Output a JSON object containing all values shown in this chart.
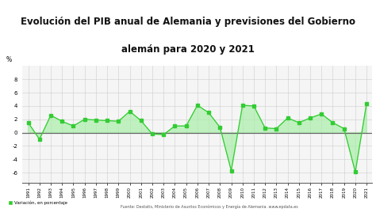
{
  "years": [
    "1991",
    "1992",
    "1993",
    "1994",
    "1995",
    "1996",
    "1997",
    "1998",
    "1999",
    "2000",
    "2001",
    "2002",
    "2003",
    "2004",
    "2005",
    "2006",
    "2007",
    "2008",
    "2009",
    "2010",
    "2011",
    "2012",
    "2013",
    "2014",
    "2015",
    "2016",
    "2017",
    "2018",
    "2019",
    "2020",
    "2021"
  ],
  "values": [
    1.5,
    -1.0,
    2.6,
    1.7,
    1.0,
    2.0,
    1.9,
    1.8,
    1.7,
    3.2,
    1.8,
    -0.2,
    -0.3,
    1.0,
    1.0,
    4.1,
    3.0,
    0.8,
    -5.7,
    4.1,
    4.0,
    0.7,
    0.6,
    2.2,
    1.5,
    2.2,
    2.8,
    1.5,
    0.6,
    -5.9,
    4.4
  ],
  "line_color": "#33cc33",
  "fill_color": "#aaeeaa",
  "marker_color": "#33cc33",
  "background_color": "#f5f5f5",
  "plot_bg_color": "#f5f5f5",
  "grid_color": "#cccccc",
  "zero_line_color": "#666666",
  "title_line1": "Evolución del PIB anual de Alemania y previsiones del Gobierno",
  "title_line2": "alemán para 2020 y 2021",
  "title_fontsize": 8.5,
  "title_bg": "#ffffff",
  "ylabel": "%",
  "ylim": [
    -7.5,
    10
  ],
  "yticks": [
    -6,
    -4,
    -2,
    0,
    2,
    4,
    6,
    8
  ],
  "legend_label": "Variación, en porcentaje",
  "source_text": "Fuente: Destatis, Ministerio de Asuntos Económicos y Energía de Alemania. www.epdata.es",
  "legend_marker_color": "#33cc33"
}
